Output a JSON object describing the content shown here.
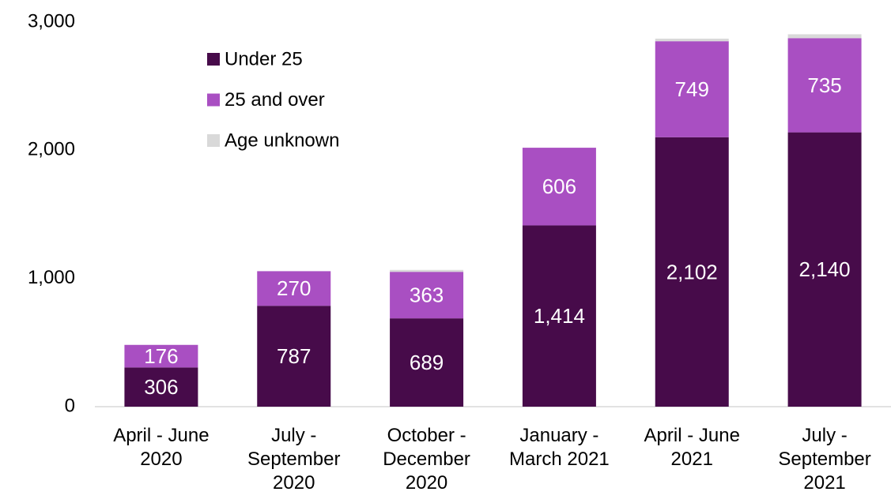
{
  "chart_data": {
    "type": "stacked_bar",
    "categories": [
      "April - June 2020",
      "July - September 2020",
      "October - December 2020",
      "January - March 2021",
      "April - June 2021",
      "July - September 2021"
    ],
    "series": [
      {
        "name": "Under 25",
        "color": "#470b4a",
        "values": [
          306,
          787,
          689,
          1414,
          2102,
          2140
        ],
        "value_labels": [
          "306",
          "787",
          "689",
          "1,414",
          "2,102",
          "2,140"
        ]
      },
      {
        "name": "25 and over",
        "color": "#a94fc2",
        "values": [
          176,
          270,
          363,
          606,
          749,
          735
        ]
      },
      {
        "name": "Age unknown",
        "color": "#d9d9d9",
        "values": [
          0,
          0,
          15,
          0,
          20,
          30
        ]
      }
    ],
    "ylim": [
      0,
      3000
    ],
    "yticks": [
      0,
      {
        "value": 1000,
        "label": "1,000"
      },
      {
        "value": 2000,
        "label": "2,000"
      },
      {
        "value": 3000,
        "label": "3,000"
      }
    ],
    "grid": false,
    "legend": "top-left"
  }
}
